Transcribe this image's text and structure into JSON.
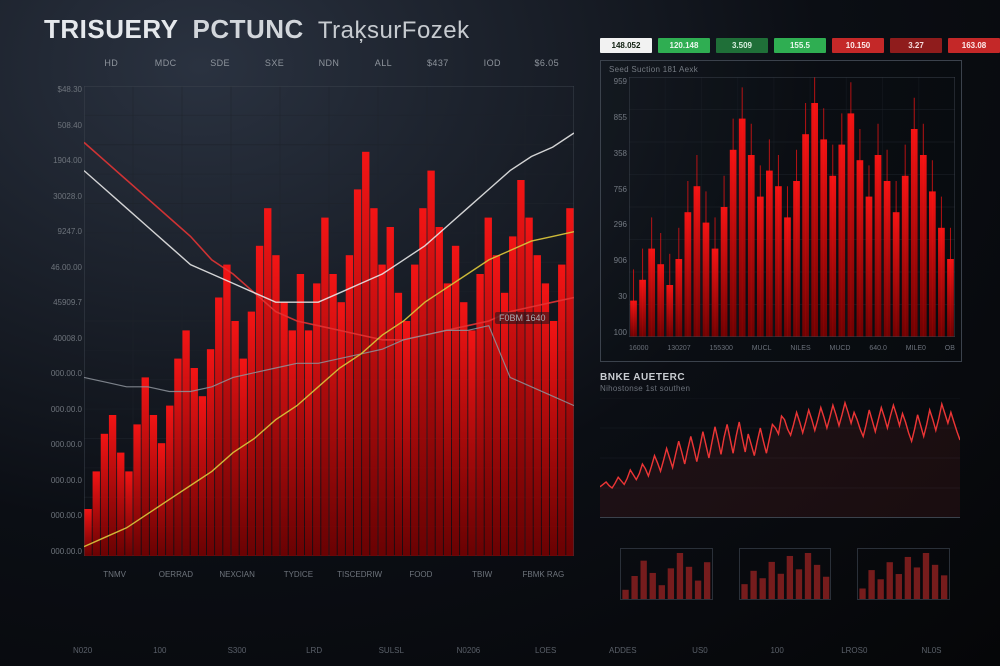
{
  "title": {
    "seg1": "TRISUERY",
    "seg2": "PCTUNC",
    "seg3": "TraķsurFozek"
  },
  "colors": {
    "bg_grad_a": "#2a3240",
    "bg_grad_b": "#0b0e14",
    "grid": "#2c323b",
    "grid_faint": "#1e232b",
    "axis": "#3b424c",
    "bar_red_top": "#ff1414",
    "bar_red_bot": "#7a0000",
    "line_red": "#e23434",
    "line_red_bright": "#ff3a3a",
    "line_white": "#e8e8e8",
    "line_yellow": "#d6c23a",
    "line_gray": "#8e949c",
    "chip_white": "#f2f2f2",
    "chip_green": "#2fae52",
    "chip_green_dim": "#1f6f38",
    "chip_red": "#c42828",
    "chip_red_dim": "#8f1c1c",
    "text_dim": "#6e747c"
  },
  "main_chart": {
    "type": "combo-bar-line",
    "x_headers": [
      "HD",
      "MDC",
      "SDE",
      "SXE",
      "NDN",
      "ALL",
      "$437",
      "IOD",
      "$6.05"
    ],
    "x_footers": [
      "TNMV",
      "OERRAD",
      "NEXCIAN",
      "TYDICE",
      "TISCEDRIW",
      "FOOD",
      "TBIW",
      "FBMK RAG"
    ],
    "y_labels": [
      "$48.30",
      "508.40",
      "1904.00",
      "30028.0",
      "9247.0",
      "46.00.00",
      "45909.7",
      "40008.0",
      "000.00.0",
      "000.00.0",
      "000.00.0",
      "000.00.0",
      "000.00.0",
      "000.00.0"
    ],
    "xlim": [
      0,
      60
    ],
    "ylim": [
      0,
      100
    ],
    "grid_x_count": 10,
    "grid_y_count": 16,
    "bars": [
      10,
      18,
      26,
      30,
      22,
      18,
      28,
      38,
      30,
      24,
      32,
      42,
      48,
      40,
      34,
      44,
      55,
      62,
      50,
      42,
      52,
      66,
      74,
      64,
      54,
      48,
      60,
      48,
      58,
      72,
      60,
      54,
      64,
      78,
      86,
      74,
      62,
      70,
      56,
      50,
      62,
      74,
      82,
      70,
      58,
      66,
      54,
      48,
      60,
      72,
      64,
      56,
      68,
      80,
      72,
      64,
      58,
      50,
      62,
      74
    ],
    "line_white": [
      82,
      78,
      74,
      70,
      66,
      62,
      60,
      58,
      56,
      54,
      54,
      54,
      56,
      58,
      60,
      63,
      66,
      70,
      74,
      78,
      82,
      85,
      87,
      90
    ],
    "line_red": [
      88,
      84,
      80,
      76,
      72,
      68,
      63,
      60,
      56,
      52,
      50,
      49,
      48,
      47,
      46,
      46,
      47,
      48,
      49,
      50,
      52,
      53,
      54,
      55
    ],
    "line_yellow": [
      2,
      4,
      6,
      9,
      12,
      15,
      18,
      22,
      25,
      29,
      32,
      36,
      40,
      43,
      47,
      50,
      54,
      57,
      60,
      63,
      65,
      67,
      68,
      69
    ],
    "line_gray": [
      38,
      37,
      36,
      36,
      35,
      35,
      36,
      38,
      39,
      40,
      41,
      41,
      42,
      43,
      44,
      46,
      47,
      48,
      48,
      49,
      38,
      36,
      34,
      32
    ],
    "tag": {
      "x_ratio": 0.9,
      "y_ratio": 0.48,
      "text": "F0BM 1640"
    }
  },
  "chips": [
    {
      "label": "148.052",
      "bg": "#f2f2f2",
      "fg": "#102010"
    },
    {
      "label": "120.148",
      "bg": "#2fae52",
      "fg": "#eaf7ee"
    },
    {
      "label": "3.509",
      "bg": "#1f6f38",
      "fg": "#d9f0e0"
    },
    {
      "label": "155.5",
      "bg": "#2fae52",
      "fg": "#eaf7ee"
    },
    {
      "label": "10.150",
      "bg": "#c42828",
      "fg": "#fdecec"
    },
    {
      "label": "3.27",
      "bg": "#8f1c1c",
      "fg": "#f6dddd"
    },
    {
      "label": "163.08",
      "bg": "#c42828",
      "fg": "#fdecec"
    }
  ],
  "right_chart": {
    "type": "bar-with-wicks",
    "subtitle": "Seed Suction 181 Aexk",
    "y_labels": [
      "959",
      "855",
      "358",
      "756",
      "296",
      "906",
      "30",
      "100"
    ],
    "x_labels": [
      "16000",
      "130207",
      "155300",
      "MUCL",
      "NILES",
      "MUCD",
      "640.0",
      "MILE0",
      "OB"
    ],
    "xlim": [
      0,
      36
    ],
    "ylim": [
      0,
      100
    ],
    "bars": [
      14,
      22,
      34,
      28,
      20,
      30,
      48,
      58,
      44,
      34,
      50,
      72,
      84,
      70,
      54,
      64,
      58,
      46,
      60,
      78,
      90,
      76,
      62,
      74,
      86,
      68,
      54,
      70,
      60,
      48,
      62,
      80,
      70,
      56,
      42,
      30
    ],
    "wick_extra": 12
  },
  "br_chart": {
    "type": "line",
    "title": "BNKE AUETERC",
    "subtitle": "Nihostonse 1st southen",
    "xlim": [
      0,
      120
    ],
    "ylim": [
      0,
      100
    ],
    "line": [
      26,
      28,
      30,
      27,
      25,
      29,
      34,
      31,
      28,
      33,
      40,
      36,
      32,
      37,
      45,
      41,
      35,
      43,
      52,
      46,
      39,
      48,
      58,
      50,
      42,
      53,
      64,
      55,
      45,
      57,
      68,
      58,
      47,
      59,
      72,
      61,
      50,
      63,
      76,
      65,
      53,
      67,
      78,
      66,
      54,
      68,
      80,
      67,
      55,
      70,
      61,
      52,
      64,
      75,
      64,
      54,
      66,
      78,
      75,
      70,
      85,
      82,
      74,
      69,
      78,
      88,
      80,
      71,
      80,
      90,
      82,
      73,
      82,
      92,
      84,
      75,
      84,
      94,
      86,
      77,
      86,
      96,
      88,
      79,
      88,
      82,
      74,
      68,
      78,
      90,
      81,
      72,
      82,
      92,
      84,
      75,
      85,
      94,
      86,
      77,
      87,
      80,
      71,
      64,
      74,
      86,
      77,
      68,
      78,
      90,
      82,
      73,
      83,
      95,
      87,
      79,
      88,
      80,
      72,
      65
    ]
  },
  "minis": {
    "bars": [
      [
        12,
        30,
        50,
        34,
        18,
        40,
        60,
        42,
        24,
        48
      ],
      [
        20,
        38,
        28,
        50,
        34,
        58,
        40,
        62,
        46,
        30
      ],
      [
        16,
        44,
        30,
        56,
        38,
        64,
        48,
        70,
        52,
        36
      ]
    ],
    "bar_color": "#8a2020",
    "frame": "#2a3039"
  },
  "bottom_ticks": [
    "N020",
    "100",
    "S300",
    "LRD",
    "SULSL",
    "N0206",
    "LOES",
    "ADDES",
    "US0",
    "100",
    "LROS0",
    "NL0S"
  ]
}
